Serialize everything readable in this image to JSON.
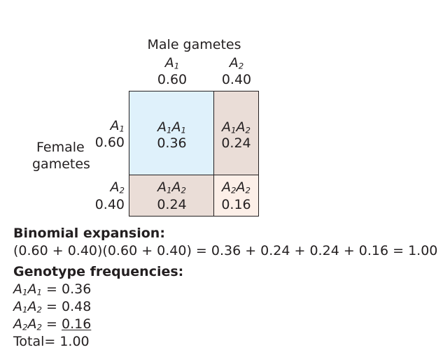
{
  "header": {
    "male_gametes_label": "Male gametes",
    "female_gametes_line1": "Female",
    "female_gametes_line2": "gametes"
  },
  "male_alleles": [
    {
      "base": "A",
      "sub": "1",
      "freq": "0.60"
    },
    {
      "base": "A",
      "sub": "2",
      "freq": "0.40"
    }
  ],
  "female_alleles": [
    {
      "base": "A",
      "sub": "1",
      "freq": "0.60"
    },
    {
      "base": "A",
      "sub": "2",
      "freq": "0.40"
    }
  ],
  "grid": {
    "cells": [
      {
        "g1": "A",
        "s1": "1",
        "g2": "A",
        "s2": "1",
        "freq": "0.36",
        "color": "#dff1fb"
      },
      {
        "g1": "A",
        "s1": "1",
        "g2": "A",
        "s2": "2",
        "freq": "0.24",
        "color": "#eaddd7"
      },
      {
        "g1": "A",
        "s1": "1",
        "g2": "A",
        "s2": "2",
        "freq": "0.24",
        "color": "#eaddd7"
      },
      {
        "g1": "A",
        "s1": "2",
        "g2": "A",
        "s2": "2",
        "freq": "0.16",
        "color": "#fcefe8"
      }
    ],
    "border_color": "#231f20"
  },
  "binomial": {
    "heading": "Binomial expansion:",
    "equation": "(0.60 + 0.40)(0.60 + 0.40) = 0.36 + 0.24 + 0.24 + 0.16 = 1.00"
  },
  "genotype": {
    "heading": "Genotype frequencies:",
    "rows": [
      {
        "g1": "A",
        "s1": "1",
        "g2": "A",
        "s2": "1",
        "eq": " = ",
        "value": "0.36"
      },
      {
        "g1": "A",
        "s1": "1",
        "g2": "A",
        "s2": "2",
        "eq": " = ",
        "value": "0.48"
      },
      {
        "g1": "A",
        "s1": "2",
        "g2": "A",
        "s2": "2",
        "eq": " = ",
        "value": "0.16"
      }
    ],
    "total_label": "Total",
    "total_eq": "= ",
    "total_value": "1.00"
  }
}
